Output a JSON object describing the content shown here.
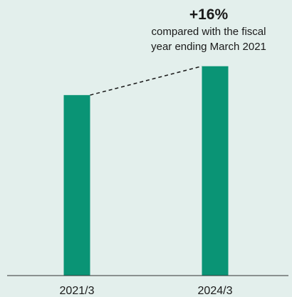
{
  "chart_data": {
    "type": "bar",
    "categories": [
      "2021/3",
      "2024/3"
    ],
    "values": [
      100,
      116
    ],
    "change_label": "+16%",
    "change_note_line1": "compared with the fiscal",
    "change_note_line2": "year ending March 2021",
    "ylim": [
      0,
      125
    ],
    "grid": false,
    "bar_color": "#0a9475",
    "background_color": "#e3efec",
    "axis_color": "#333333",
    "connector_color": "#1a1a1a"
  }
}
